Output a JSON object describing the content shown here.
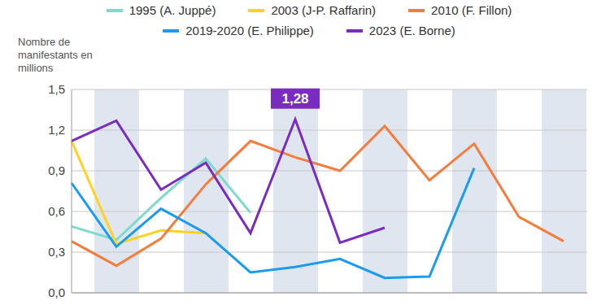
{
  "chart_data": {
    "type": "line",
    "y_label": "Nombre de manifestants en millions",
    "categories": [
      null,
      null,
      null,
      null,
      null,
      null,
      null,
      null,
      null,
      null,
      null,
      null
    ],
    "series": [
      {
        "name": "1995 (A. Juppé)",
        "color": "#7fd9cf",
        "values": [
          0.49,
          0.39,
          0.7,
          0.99,
          0.59,
          null,
          null,
          null,
          null,
          null,
          null,
          null
        ]
      },
      {
        "name": "2003 (J-P. Raffarin)",
        "color": "#ffd21f",
        "values": [
          1.12,
          0.36,
          0.46,
          0.44,
          null,
          null,
          null,
          null,
          null,
          null,
          null,
          null
        ]
      },
      {
        "name": "2010 (F. Fillon)",
        "color": "#f47c3c",
        "values": [
          0.38,
          0.2,
          0.4,
          0.8,
          1.12,
          1.0,
          0.9,
          1.23,
          0.83,
          1.1,
          0.56,
          0.38
        ]
      },
      {
        "name": "2019-2020 (E. Philippe)",
        "color": "#1a9bf0",
        "values": [
          0.81,
          0.34,
          0.62,
          0.44,
          0.15,
          0.19,
          0.25,
          0.11,
          0.12,
          0.92,
          null,
          null
        ]
      },
      {
        "name": "2023 (E. Borne)",
        "color": "#7a2cc0",
        "values": [
          1.12,
          1.27,
          0.76,
          0.96,
          0.44,
          1.28,
          0.37,
          0.48,
          null,
          null,
          null,
          null
        ]
      }
    ],
    "ylim": [
      0,
      1.5
    ],
    "yticks": [
      {
        "value": 0,
        "label": "0,0"
      },
      {
        "value": 0.3,
        "label": "0,3"
      },
      {
        "value": 0.6,
        "label": "0,6"
      },
      {
        "value": 0.9,
        "label": "0,9"
      },
      {
        "value": 1.2,
        "label": "1,2"
      },
      {
        "value": 1.5,
        "label": "1,5"
      }
    ],
    "grid": true,
    "legend": "top",
    "tick_labels": "y",
    "annotations": [
      {
        "text": "1,28",
        "index": 5,
        "value": 1.28,
        "series": "2023 (E. Borne)"
      }
    ]
  }
}
